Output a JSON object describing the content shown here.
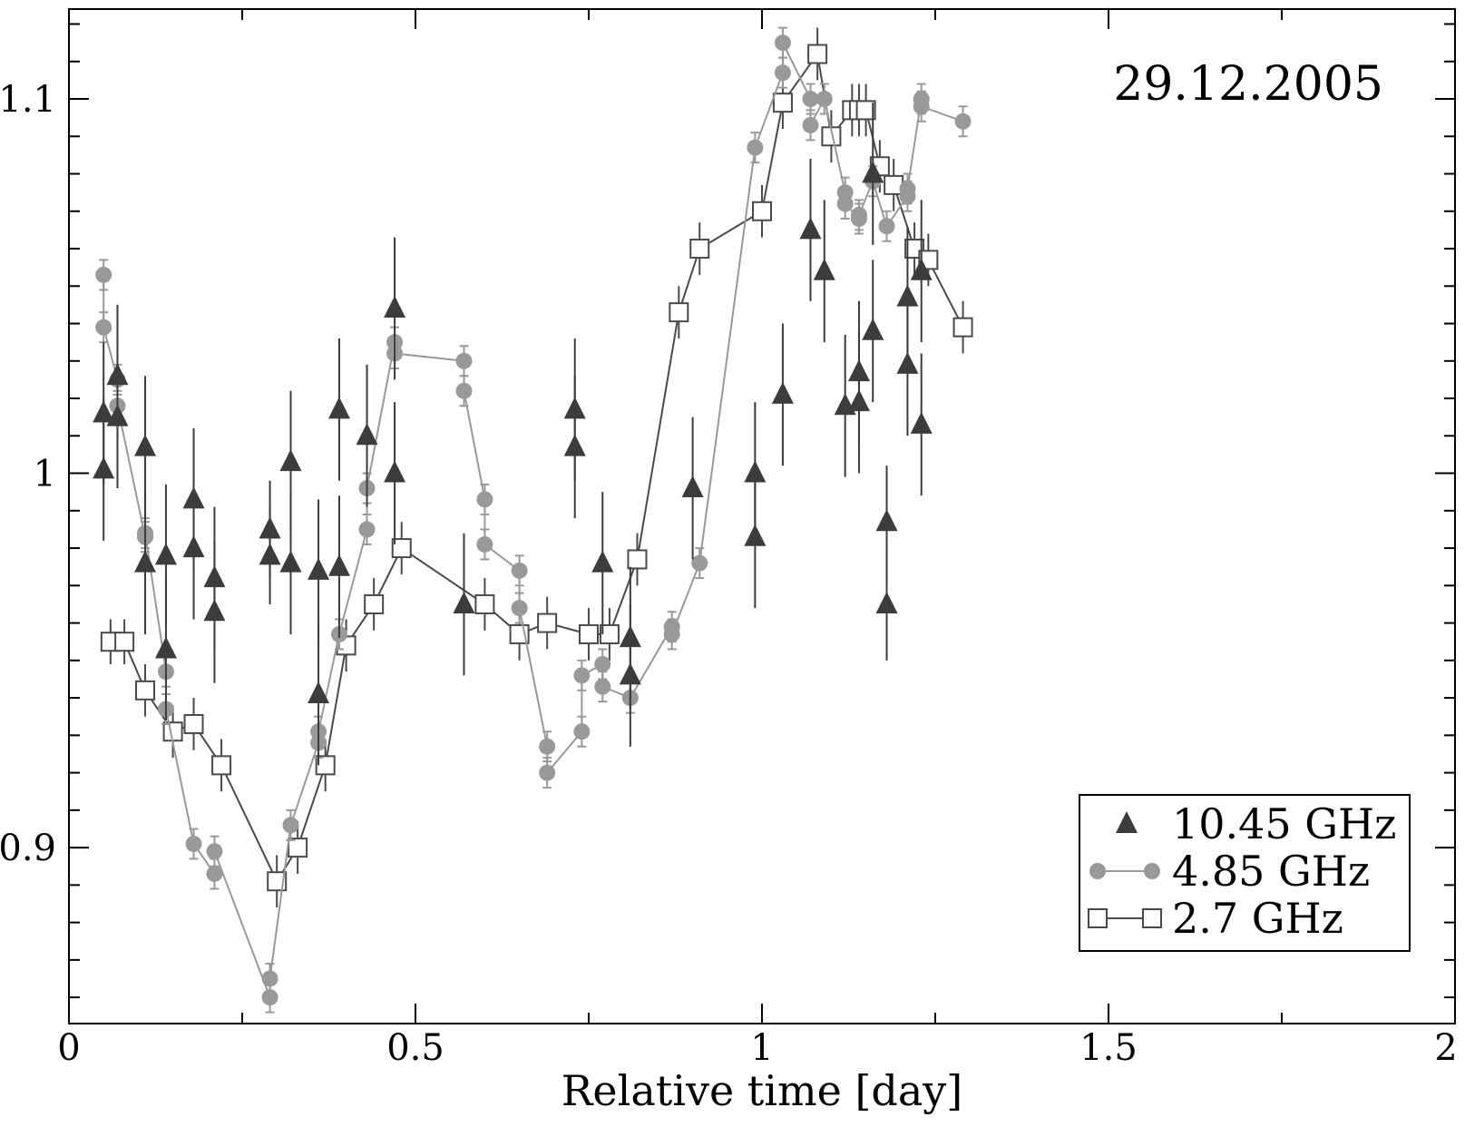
{
  "chart_data": {
    "type": "scatter",
    "title": "",
    "annotation": "29.12.2005",
    "xlabel": "Relative time [day]",
    "ylabel": "",
    "xlim": [
      0,
      2
    ],
    "ylim": [
      0.853,
      1.124
    ],
    "x_ticks": [
      "0",
      "0.5",
      "1",
      "1.5",
      "2"
    ],
    "y_ticks": [
      "0.9",
      "1",
      "1.1"
    ],
    "grid": false,
    "legend_position": "bottom-right",
    "series": [
      {
        "name": "10.45 GHz",
        "marker": "filled-triangle",
        "color": "#3c3c3c",
        "connected": false,
        "points": [
          [
            0.05,
            1.016,
            0.019
          ],
          [
            0.05,
            1.001,
            0.019
          ],
          [
            0.07,
            1.026,
            0.019
          ],
          [
            0.07,
            1.015,
            0.019
          ],
          [
            0.11,
            1.007,
            0.019
          ],
          [
            0.11,
            0.976,
            0.019
          ],
          [
            0.14,
            0.978,
            0.019
          ],
          [
            0.14,
            0.953,
            0.019
          ],
          [
            0.18,
            0.993,
            0.019
          ],
          [
            0.18,
            0.98,
            0.019
          ],
          [
            0.21,
            0.972,
            0.019
          ],
          [
            0.21,
            0.963,
            0.019
          ],
          [
            0.29,
            0.985,
            0.013
          ],
          [
            0.29,
            0.978,
            0.013
          ],
          [
            0.32,
            1.003,
            0.019
          ],
          [
            0.32,
            0.976,
            0.019
          ],
          [
            0.36,
            0.974,
            0.019
          ],
          [
            0.36,
            0.941,
            0.019
          ],
          [
            0.39,
            1.017,
            0.019
          ],
          [
            0.39,
            0.975,
            0.019
          ],
          [
            0.43,
            1.01,
            0.019
          ],
          [
            0.47,
            1.044,
            0.019
          ],
          [
            0.47,
            1.0,
            0.019
          ],
          [
            0.57,
            0.965,
            0.019
          ],
          [
            0.73,
            1.017,
            0.019
          ],
          [
            0.73,
            1.007,
            0.019
          ],
          [
            0.77,
            0.976,
            0.019
          ],
          [
            0.81,
            0.956,
            0.019
          ],
          [
            0.81,
            0.946,
            0.019
          ],
          [
            0.9,
            0.996,
            0.019
          ],
          [
            0.99,
            1.0,
            0.019
          ],
          [
            0.99,
            0.983,
            0.019
          ],
          [
            1.03,
            1.021,
            0.019
          ],
          [
            1.07,
            1.065,
            0.019
          ],
          [
            1.09,
            1.054,
            0.019
          ],
          [
            1.12,
            1.018,
            0.019
          ],
          [
            1.14,
            1.027,
            0.019
          ],
          [
            1.14,
            1.019,
            0.019
          ],
          [
            1.16,
            1.08,
            0.019
          ],
          [
            1.16,
            1.038,
            0.019
          ],
          [
            1.18,
            0.987,
            0.015
          ],
          [
            1.18,
            0.965,
            0.015
          ],
          [
            1.21,
            1.047,
            0.019
          ],
          [
            1.21,
            1.029,
            0.019
          ],
          [
            1.23,
            1.054,
            0.019
          ],
          [
            1.23,
            1.013,
            0.019
          ]
        ]
      },
      {
        "name": "4.85 GHz",
        "marker": "filled-circle",
        "color": "#999999",
        "connected": true,
        "points": [
          [
            0.05,
            1.053,
            0.004
          ],
          [
            0.05,
            1.039,
            0.004
          ],
          [
            0.07,
            1.025,
            0.004
          ],
          [
            0.07,
            1.018,
            0.004
          ],
          [
            0.11,
            0.983,
            0.004
          ],
          [
            0.11,
            0.984,
            0.004
          ],
          [
            0.14,
            0.947,
            0.004
          ],
          [
            0.14,
            0.937,
            0.004
          ],
          [
            0.18,
            0.901,
            0.004
          ],
          [
            0.21,
            0.893,
            0.004
          ],
          [
            0.21,
            0.899,
            0.004
          ],
          [
            0.29,
            0.86,
            0.004
          ],
          [
            0.29,
            0.865,
            0.004
          ],
          [
            0.32,
            0.906,
            0.004
          ],
          [
            0.36,
            0.928,
            0.004
          ],
          [
            0.36,
            0.931,
            0.004
          ],
          [
            0.39,
            0.957,
            0.004
          ],
          [
            0.43,
            0.985,
            0.004
          ],
          [
            0.43,
            0.996,
            0.004
          ],
          [
            0.47,
            1.035,
            0.004
          ],
          [
            0.47,
            1.032,
            0.004
          ],
          [
            0.57,
            1.03,
            0.004
          ],
          [
            0.57,
            1.022,
            0.004
          ],
          [
            0.6,
            0.993,
            0.004
          ],
          [
            0.6,
            0.981,
            0.004
          ],
          [
            0.65,
            0.974,
            0.004
          ],
          [
            0.65,
            0.964,
            0.004
          ],
          [
            0.69,
            0.927,
            0.004
          ],
          [
            0.69,
            0.92,
            0.004
          ],
          [
            0.74,
            0.931,
            0.004
          ],
          [
            0.74,
            0.946,
            0.004
          ],
          [
            0.77,
            0.949,
            0.004
          ],
          [
            0.77,
            0.943,
            0.004
          ],
          [
            0.81,
            0.94,
            0.004
          ],
          [
            0.87,
            0.959,
            0.004
          ],
          [
            0.87,
            0.957,
            0.004
          ],
          [
            0.91,
            0.976,
            0.004
          ],
          [
            0.99,
            1.087,
            0.004
          ],
          [
            1.03,
            1.107,
            0.004
          ],
          [
            1.03,
            1.115,
            0.004
          ],
          [
            1.07,
            1.1,
            0.004
          ],
          [
            1.07,
            1.093,
            0.004
          ],
          [
            1.09,
            1.1,
            0.004
          ],
          [
            1.12,
            1.075,
            0.004
          ],
          [
            1.12,
            1.072,
            0.004
          ],
          [
            1.14,
            1.068,
            0.004
          ],
          [
            1.14,
            1.069,
            0.004
          ],
          [
            1.16,
            1.078,
            0.004
          ],
          [
            1.18,
            1.066,
            0.004
          ],
          [
            1.21,
            1.074,
            0.004
          ],
          [
            1.21,
            1.076,
            0.004
          ],
          [
            1.23,
            1.1,
            0.004
          ],
          [
            1.23,
            1.098,
            0.004
          ],
          [
            1.29,
            1.094,
            0.004
          ]
        ]
      },
      {
        "name": "2.7 GHz",
        "marker": "open-square",
        "color": "#4a4a4a",
        "connected": true,
        "points": [
          [
            0.06,
            0.955,
            0.006
          ],
          [
            0.08,
            0.955,
            0.006
          ],
          [
            0.11,
            0.942,
            0.007
          ],
          [
            0.15,
            0.931,
            0.007
          ],
          [
            0.18,
            0.933,
            0.007
          ],
          [
            0.22,
            0.922,
            0.007
          ],
          [
            0.3,
            0.891,
            0.007
          ],
          [
            0.33,
            0.9,
            0.007
          ],
          [
            0.37,
            0.922,
            0.007
          ],
          [
            0.4,
            0.954,
            0.007
          ],
          [
            0.44,
            0.965,
            0.007
          ],
          [
            0.48,
            0.98,
            0.007
          ],
          [
            0.6,
            0.965,
            0.007
          ],
          [
            0.65,
            0.957,
            0.007
          ],
          [
            0.69,
            0.96,
            0.007
          ],
          [
            0.75,
            0.957,
            0.007
          ],
          [
            0.78,
            0.957,
            0.007
          ],
          [
            0.82,
            0.977,
            0.007
          ],
          [
            0.88,
            1.043,
            0.007
          ],
          [
            0.91,
            1.06,
            0.007
          ],
          [
            1.0,
            1.07,
            0.007
          ],
          [
            1.03,
            1.099,
            0.007
          ],
          [
            1.08,
            1.112,
            0.007
          ],
          [
            1.1,
            1.09,
            0.007
          ],
          [
            1.13,
            1.097,
            0.007
          ],
          [
            1.14,
            1.097,
            0.007
          ],
          [
            1.15,
            1.097,
            0.007
          ],
          [
            1.17,
            1.082,
            0.007
          ],
          [
            1.19,
            1.077,
            0.007
          ],
          [
            1.22,
            1.06,
            0.007
          ],
          [
            1.24,
            1.057,
            0.007
          ],
          [
            1.29,
            1.039,
            0.007
          ]
        ]
      }
    ]
  }
}
